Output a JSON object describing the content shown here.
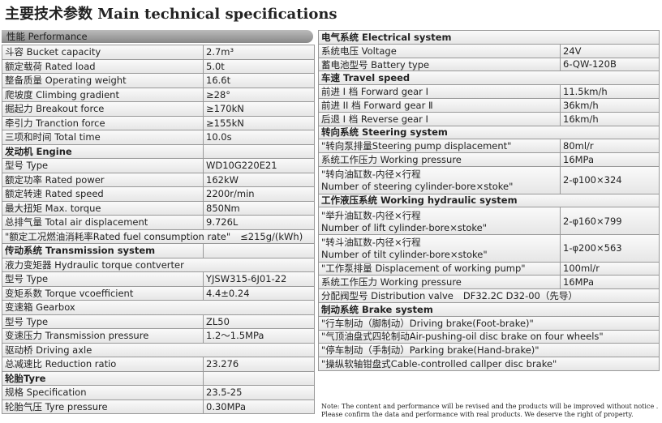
{
  "title": "主要技术参数 Main technical specifications",
  "left": {
    "header": "性能 Performance",
    "rows": [
      {
        "cells": [
          "斗容 Bucket capacity",
          "2.7m³"
        ]
      },
      {
        "cells": [
          "额定载荷 Rated load",
          "5.0t"
        ]
      },
      {
        "cells": [
          "整备质量 Operating weight",
          "16.6t"
        ]
      },
      {
        "cells": [
          "爬坡度 Climbing gradient",
          "≥28°"
        ]
      },
      {
        "cells": [
          "掘起力 Breakout force",
          "≥170kN"
        ]
      },
      {
        "cells": [
          "牵引力 Tranction force",
          "≥155kN"
        ]
      },
      {
        "cells": [
          "三项和时间 Total time",
          "10.0s"
        ]
      },
      {
        "heading": "发动机 Engine"
      },
      {
        "cells": [
          "型号 Type",
          "WD10G220E21"
        ]
      },
      {
        "cells": [
          "额定功率 Rated power",
          "162kW"
        ]
      },
      {
        "cells": [
          "额定转速 Rated speed",
          "2200r/min"
        ]
      },
      {
        "cells": [
          "最大扭矩 Max. torque",
          "850Nm"
        ]
      },
      {
        "cells": [
          "总排气量 Total air displacement",
          "9.726L"
        ]
      },
      {
        "cells": [
          "\"额定工况燃油消耗率Rated fuel consumption rate\"",
          "≤215g/(kWh)"
        ],
        "span": true
      },
      {
        "heading": "传动系统 Transmission system"
      },
      {
        "line": "液力变矩器 Hydraulic torque contverter"
      },
      {
        "cells": [
          "型号 Type",
          "YJSW315-6J01-22"
        ]
      },
      {
        "cells": [
          "变矩系数 Torque vcoefficient",
          "4.4±0.24"
        ]
      },
      {
        "line": "变速箱 Gearbox"
      },
      {
        "cells": [
          "型号 Type",
          "ZL50"
        ]
      },
      {
        "cells": [
          "变速压力 Transmission pressure",
          "1.2～1.5MPa"
        ]
      },
      {
        "line": "驱动桥 Driving axle"
      },
      {
        "cells": [
          "总减速比 Reduction ratio",
          "23.276"
        ]
      },
      {
        "heading": "轮胎Tyre"
      },
      {
        "cells": [
          "规格 Specification",
          "23.5-25"
        ]
      },
      {
        "cells": [
          "轮胎气压 Tyre pressure",
          "0.30MPa"
        ]
      }
    ]
  },
  "right": {
    "rows": [
      {
        "heading": "电气系统 Electrical system"
      },
      {
        "cells": [
          "系统电压 Voltage",
          "24V"
        ]
      },
      {
        "cells": [
          "蓄电池型号 Battery type",
          "6-QW-120B"
        ]
      },
      {
        "heading": "车速 Travel speed"
      },
      {
        "cells": [
          "前进 I 档 Forward gear Ⅰ",
          "11.5km/h"
        ]
      },
      {
        "cells": [
          "前进 II 档 Forward gear Ⅱ",
          "36km/h"
        ]
      },
      {
        "cells": [
          "后退 I 档 Reverse gear Ⅰ",
          "16km/h"
        ]
      },
      {
        "heading": "转向系统 Steering system"
      },
      {
        "cells": [
          "\"转向泵排量Steering pump displacement\"",
          "80ml/r"
        ]
      },
      {
        "cells": [
          "系统工作压力 Working pressure",
          "16MPa"
        ]
      },
      {
        "cells": [
          [
            "\"转向油缸数-内径×行程",
            "Number of steering cylinder-bore×stoke\""
          ],
          "2-φ100×324"
        ]
      },
      {
        "heading": "工作液压系统 Working hydraulic system"
      },
      {
        "cells": [
          [
            "\"举升油缸数-内径×行程",
            "Number of lift cylinder-bore×stoke\""
          ],
          "2-φ160×799"
        ]
      },
      {
        "cells": [
          [
            "\"转斗油缸数-内径×行程",
            "Number of tilt cylinder-bore×stoke\""
          ],
          "1-φ200×563"
        ]
      },
      {
        "cells": [
          "\"工作泵排量 Displacement of working pump\"",
          "100ml/r"
        ]
      },
      {
        "cells": [
          "系统工作压力 Working pressure",
          "16MPa"
        ]
      },
      {
        "cells": [
          "分配阀型号 Distribution valve",
          "DF32.2C  D32-00（先导）"
        ],
        "span": true
      },
      {
        "heading": "制动系统 Brake system"
      },
      {
        "line": "\"行车制动（脚制动）Driving brake(Foot-brake)\""
      },
      {
        "line": "\"气顶油盘式四轮制动Air-pushing-oil disc brake on four wheels\""
      },
      {
        "line": "\"停车制动（手制动）Parking brake(Hand-brake)\""
      },
      {
        "line": "\"操纵软轴钳盘式Cable-controlled callper disc brake\""
      }
    ]
  },
  "note": [
    "Note: The content and performance will be revised and the products will be improved without notice .",
    "Please confirm the data and performance with real products. We deserve the right of property."
  ]
}
